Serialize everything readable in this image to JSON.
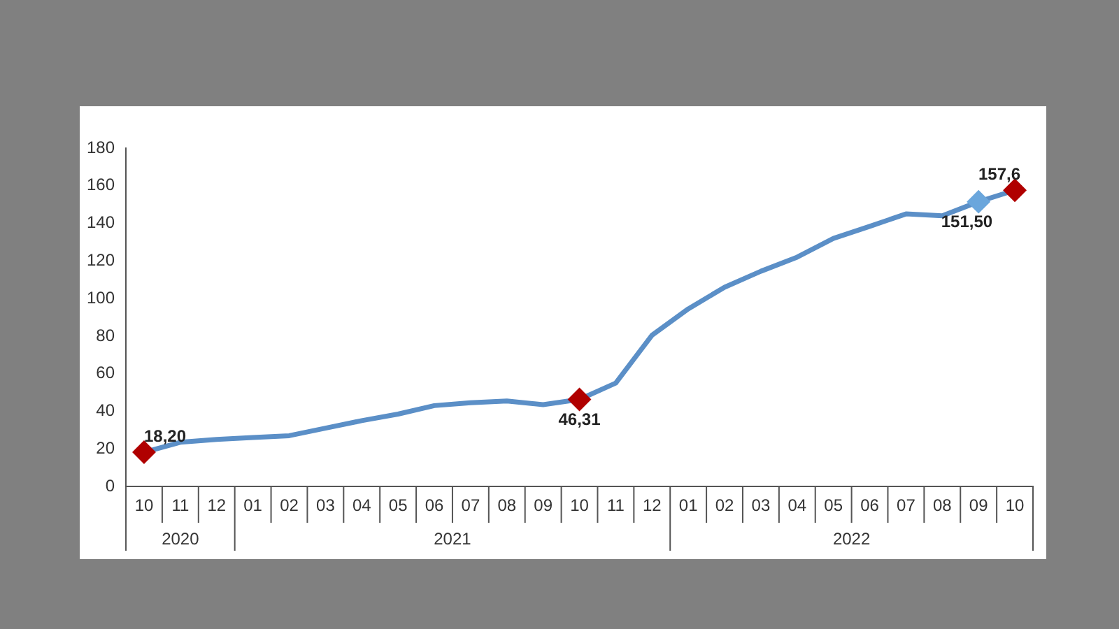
{
  "chart_data": {
    "type": "line",
    "categories": [
      "10",
      "11",
      "12",
      "01",
      "02",
      "03",
      "04",
      "05",
      "06",
      "07",
      "08",
      "09",
      "10",
      "11",
      "12",
      "01",
      "02",
      "03",
      "04",
      "05",
      "06",
      "07",
      "08",
      "09",
      "10"
    ],
    "annotations": [
      "2020",
      "2021",
      "2022"
    ],
    "series": [
      {
        "color": "#5b8fc7",
        "values": [
          18.2,
          23.5,
          25,
          26,
          27,
          31,
          35,
          38.5,
          43,
          44.5,
          45.5,
          43.5,
          46.31,
          55,
          80.5,
          94.5,
          106,
          114.5,
          122,
          132,
          138.4,
          145,
          144,
          151.5,
          157.6
        ],
        "colors": [
          "#b00000",
          null,
          null,
          null,
          null,
          null,
          null,
          null,
          null,
          null,
          null,
          null,
          "#b00000",
          null,
          null,
          null,
          null,
          null,
          null,
          null,
          null,
          null,
          null,
          "#6aa6dc",
          "#b00000"
        ],
        "value_labels": [
          "18,20",
          null,
          null,
          null,
          null,
          null,
          null,
          null,
          null,
          null,
          null,
          null,
          "46,31",
          null,
          null,
          null,
          null,
          null,
          null,
          null,
          null,
          null,
          null,
          "151,50",
          "157,6"
        ]
      }
    ],
    "ylim": [
      0,
      180
    ],
    "yticks": [
      0,
      20,
      40,
      60,
      80,
      100,
      120,
      140,
      160,
      180
    ],
    "grid": false,
    "legend": false,
    "line_style": "solid"
  }
}
